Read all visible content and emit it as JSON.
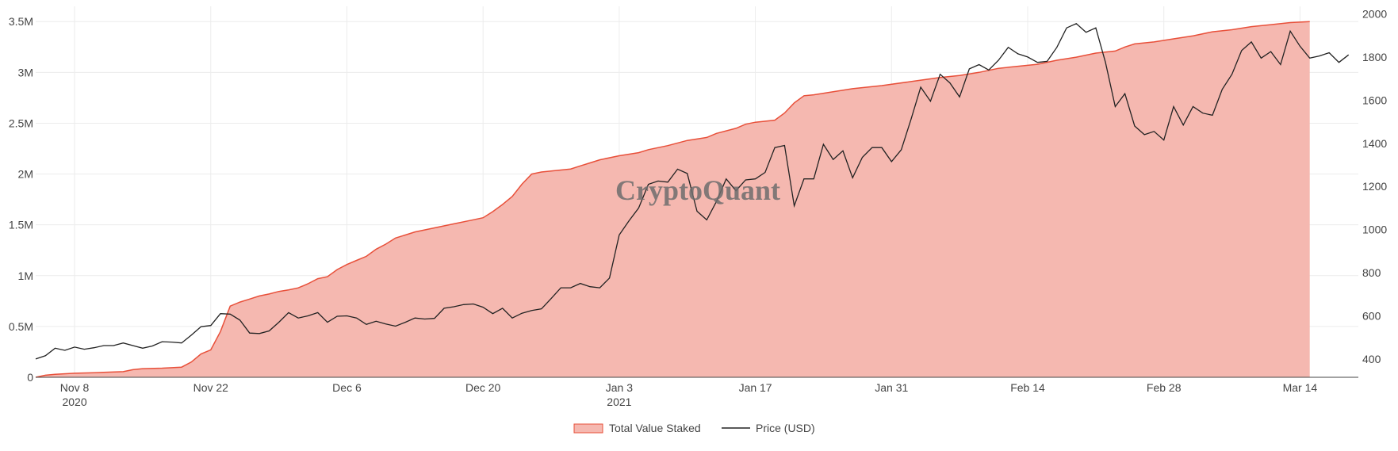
{
  "colors": {
    "area_fill": "#f5b8b0",
    "area_line": "#e8503a",
    "price_line": "#222222",
    "grid": "#ececec",
    "axis_text": "#444444"
  },
  "watermark": "CryptoQuant",
  "legend": {
    "area_label": "Total Value Staked",
    "price_label": "Price (USD)"
  },
  "chart_data": {
    "type": "area",
    "x_ticks": [
      {
        "date": "2020-11-08",
        "label": "Nov 8",
        "sublabel": "2020"
      },
      {
        "date": "2020-11-22",
        "label": "Nov 22",
        "sublabel": ""
      },
      {
        "date": "2020-12-06",
        "label": "Dec 6",
        "sublabel": ""
      },
      {
        "date": "2020-12-20",
        "label": "Dec 20",
        "sublabel": ""
      },
      {
        "date": "2021-01-03",
        "label": "Jan 3",
        "sublabel": "2021"
      },
      {
        "date": "2021-01-17",
        "label": "Jan 17",
        "sublabel": ""
      },
      {
        "date": "2021-01-31",
        "label": "Jan 31",
        "sublabel": ""
      },
      {
        "date": "2021-02-14",
        "label": "Feb 14",
        "sublabel": ""
      },
      {
        "date": "2021-02-28",
        "label": "Feb 28",
        "sublabel": ""
      },
      {
        "date": "2021-03-14",
        "label": "Mar 14",
        "sublabel": ""
      }
    ],
    "x_range": [
      "2020-11-04",
      "2021-03-20"
    ],
    "y_left": {
      "range": [
        0,
        3650000
      ],
      "ticks": [
        {
          "value": 0,
          "label": "0"
        },
        {
          "value": 500000,
          "label": "0.5M"
        },
        {
          "value": 1000000,
          "label": "1M"
        },
        {
          "value": 1500000,
          "label": "1.5M"
        },
        {
          "value": 2000000,
          "label": "2M"
        },
        {
          "value": 2500000,
          "label": "2.5M"
        },
        {
          "value": 3000000,
          "label": "3M"
        },
        {
          "value": 3500000,
          "label": "3.5M"
        }
      ]
    },
    "y_right": {
      "range": [
        315,
        2035
      ],
      "ticks": [
        {
          "value": 400,
          "label": "400"
        },
        {
          "value": 600,
          "label": "600"
        },
        {
          "value": 800,
          "label": "800"
        },
        {
          "value": 1000,
          "label": "1000"
        },
        {
          "value": 1200,
          "label": "1200"
        },
        {
          "value": 1400,
          "label": "1400"
        },
        {
          "value": 1600,
          "label": "1600"
        },
        {
          "value": 1800,
          "label": "1800"
        },
        {
          "value": 2000,
          "label": "2000"
        }
      ]
    },
    "grid": true,
    "legend_position": "bottom-center",
    "series": [
      {
        "name": "Total Value Staked",
        "axis": "left",
        "kind": "area",
        "points": [
          [
            "2020-11-04",
            0
          ],
          [
            "2020-11-05",
            20000
          ],
          [
            "2020-11-06",
            30000
          ],
          [
            "2020-11-08",
            40000
          ],
          [
            "2020-11-10",
            45000
          ],
          [
            "2020-11-13",
            55000
          ],
          [
            "2020-11-14",
            75000
          ],
          [
            "2020-11-15",
            85000
          ],
          [
            "2020-11-17",
            90000
          ],
          [
            "2020-11-19",
            100000
          ],
          [
            "2020-11-20",
            150000
          ],
          [
            "2020-11-21",
            230000
          ],
          [
            "2020-11-22",
            270000
          ],
          [
            "2020-11-23",
            450000
          ],
          [
            "2020-11-24",
            700000
          ],
          [
            "2020-11-25",
            740000
          ],
          [
            "2020-11-26",
            770000
          ],
          [
            "2020-11-27",
            800000
          ],
          [
            "2020-11-28",
            820000
          ],
          [
            "2020-11-29",
            845000
          ],
          [
            "2020-11-30",
            860000
          ],
          [
            "2020-12-01",
            880000
          ],
          [
            "2020-12-02",
            920000
          ],
          [
            "2020-12-03",
            970000
          ],
          [
            "2020-12-04",
            990000
          ],
          [
            "2020-12-05",
            1060000
          ],
          [
            "2020-12-06",
            1110000
          ],
          [
            "2020-12-07",
            1150000
          ],
          [
            "2020-12-08",
            1190000
          ],
          [
            "2020-12-09",
            1260000
          ],
          [
            "2020-12-10",
            1310000
          ],
          [
            "2020-12-11",
            1370000
          ],
          [
            "2020-12-12",
            1400000
          ],
          [
            "2020-12-13",
            1430000
          ],
          [
            "2020-12-15",
            1470000
          ],
          [
            "2020-12-17",
            1510000
          ],
          [
            "2020-12-19",
            1550000
          ],
          [
            "2020-12-20",
            1570000
          ],
          [
            "2020-12-21",
            1630000
          ],
          [
            "2020-12-22",
            1700000
          ],
          [
            "2020-12-23",
            1780000
          ],
          [
            "2020-12-24",
            1900000
          ],
          [
            "2020-12-25",
            2000000
          ],
          [
            "2020-12-26",
            2020000
          ],
          [
            "2020-12-27",
            2030000
          ],
          [
            "2020-12-29",
            2050000
          ],
          [
            "2020-12-30",
            2080000
          ],
          [
            "2020-12-31",
            2110000
          ],
          [
            "2021-01-01",
            2140000
          ],
          [
            "2021-01-03",
            2180000
          ],
          [
            "2021-01-05",
            2210000
          ],
          [
            "2021-01-06",
            2240000
          ],
          [
            "2021-01-08",
            2280000
          ],
          [
            "2021-01-10",
            2330000
          ],
          [
            "2021-01-12",
            2360000
          ],
          [
            "2021-01-13",
            2400000
          ],
          [
            "2021-01-15",
            2450000
          ],
          [
            "2021-01-16",
            2490000
          ],
          [
            "2021-01-17",
            2510000
          ],
          [
            "2021-01-19",
            2530000
          ],
          [
            "2021-01-20",
            2600000
          ],
          [
            "2021-01-21",
            2700000
          ],
          [
            "2021-01-22",
            2770000
          ],
          [
            "2021-01-23",
            2780000
          ],
          [
            "2021-01-25",
            2810000
          ],
          [
            "2021-01-27",
            2840000
          ],
          [
            "2021-01-30",
            2870000
          ],
          [
            "2021-02-02",
            2910000
          ],
          [
            "2021-02-05",
            2950000
          ],
          [
            "2021-02-07",
            2970000
          ],
          [
            "2021-02-09",
            3000000
          ],
          [
            "2021-02-11",
            3040000
          ],
          [
            "2021-02-13",
            3060000
          ],
          [
            "2021-02-15",
            3080000
          ],
          [
            "2021-02-17",
            3120000
          ],
          [
            "2021-02-19",
            3150000
          ],
          [
            "2021-02-21",
            3190000
          ],
          [
            "2021-02-23",
            3210000
          ],
          [
            "2021-02-24",
            3250000
          ],
          [
            "2021-02-25",
            3280000
          ],
          [
            "2021-02-27",
            3300000
          ],
          [
            "2021-03-01",
            3330000
          ],
          [
            "2021-03-03",
            3360000
          ],
          [
            "2021-03-05",
            3400000
          ],
          [
            "2021-03-07",
            3420000
          ],
          [
            "2021-03-09",
            3450000
          ],
          [
            "2021-03-11",
            3470000
          ],
          [
            "2021-03-13",
            3490000
          ],
          [
            "2021-03-15",
            3500000
          ]
        ]
      },
      {
        "name": "Price (USD)",
        "axis": "right",
        "kind": "line",
        "points": [
          [
            "2020-11-04",
            400
          ],
          [
            "2020-11-05",
            415
          ],
          [
            "2020-11-06",
            450
          ],
          [
            "2020-11-07",
            440
          ],
          [
            "2020-11-08",
            455
          ],
          [
            "2020-11-09",
            445
          ],
          [
            "2020-11-10",
            452
          ],
          [
            "2020-11-11",
            462
          ],
          [
            "2020-11-12",
            462
          ],
          [
            "2020-11-13",
            474
          ],
          [
            "2020-11-14",
            462
          ],
          [
            "2020-11-15",
            450
          ],
          [
            "2020-11-16",
            460
          ],
          [
            "2020-11-17",
            480
          ],
          [
            "2020-11-18",
            478
          ],
          [
            "2020-11-19",
            474
          ],
          [
            "2020-11-20",
            510
          ],
          [
            "2020-11-21",
            550
          ],
          [
            "2020-11-22",
            555
          ],
          [
            "2020-11-23",
            610
          ],
          [
            "2020-11-24",
            608
          ],
          [
            "2020-11-25",
            580
          ],
          [
            "2020-11-26",
            520
          ],
          [
            "2020-11-27",
            518
          ],
          [
            "2020-11-28",
            530
          ],
          [
            "2020-11-29",
            570
          ],
          [
            "2020-11-30",
            615
          ],
          [
            "2020-12-01",
            590
          ],
          [
            "2020-12-02",
            600
          ],
          [
            "2020-12-03",
            615
          ],
          [
            "2020-12-04",
            570
          ],
          [
            "2020-12-05",
            598
          ],
          [
            "2020-12-06",
            600
          ],
          [
            "2020-12-07",
            590
          ],
          [
            "2020-12-08",
            560
          ],
          [
            "2020-12-09",
            575
          ],
          [
            "2020-12-10",
            562
          ],
          [
            "2020-12-11",
            552
          ],
          [
            "2020-12-12",
            570
          ],
          [
            "2020-12-13",
            590
          ],
          [
            "2020-12-14",
            585
          ],
          [
            "2020-12-15",
            588
          ],
          [
            "2020-12-16",
            635
          ],
          [
            "2020-12-17",
            642
          ],
          [
            "2020-12-18",
            652
          ],
          [
            "2020-12-19",
            655
          ],
          [
            "2020-12-20",
            640
          ],
          [
            "2020-12-21",
            610
          ],
          [
            "2020-12-22",
            635
          ],
          [
            "2020-12-23",
            590
          ],
          [
            "2020-12-24",
            612
          ],
          [
            "2020-12-25",
            625
          ],
          [
            "2020-12-26",
            632
          ],
          [
            "2020-12-27",
            680
          ],
          [
            "2020-12-28",
            730
          ],
          [
            "2020-12-29",
            730
          ],
          [
            "2020-12-30",
            750
          ],
          [
            "2020-12-31",
            735
          ],
          [
            "2021-01-01",
            730
          ],
          [
            "2021-01-02",
            775
          ],
          [
            "2021-01-03",
            975
          ],
          [
            "2021-01-04",
            1040
          ],
          [
            "2021-01-05",
            1100
          ],
          [
            "2021-01-06",
            1210
          ],
          [
            "2021-01-07",
            1225
          ],
          [
            "2021-01-08",
            1220
          ],
          [
            "2021-01-09",
            1280
          ],
          [
            "2021-01-10",
            1260
          ],
          [
            "2021-01-11",
            1085
          ],
          [
            "2021-01-12",
            1045
          ],
          [
            "2021-01-13",
            1130
          ],
          [
            "2021-01-14",
            1235
          ],
          [
            "2021-01-15",
            1180
          ],
          [
            "2021-01-16",
            1230
          ],
          [
            "2021-01-17",
            1235
          ],
          [
            "2021-01-18",
            1265
          ],
          [
            "2021-01-19",
            1380
          ],
          [
            "2021-01-20",
            1390
          ],
          [
            "2021-01-21",
            1110
          ],
          [
            "2021-01-22",
            1235
          ],
          [
            "2021-01-23",
            1235
          ],
          [
            "2021-01-24",
            1395
          ],
          [
            "2021-01-25",
            1325
          ],
          [
            "2021-01-26",
            1365
          ],
          [
            "2021-01-27",
            1240
          ],
          [
            "2021-01-28",
            1335
          ],
          [
            "2021-01-29",
            1380
          ],
          [
            "2021-01-30",
            1380
          ],
          [
            "2021-01-31",
            1315
          ],
          [
            "2021-02-01",
            1370
          ],
          [
            "2021-02-02",
            1510
          ],
          [
            "2021-02-03",
            1660
          ],
          [
            "2021-02-04",
            1595
          ],
          [
            "2021-02-05",
            1720
          ],
          [
            "2021-02-06",
            1680
          ],
          [
            "2021-02-07",
            1615
          ],
          [
            "2021-02-08",
            1745
          ],
          [
            "2021-02-09",
            1765
          ],
          [
            "2021-02-10",
            1740
          ],
          [
            "2021-02-11",
            1785
          ],
          [
            "2021-02-12",
            1845
          ],
          [
            "2021-02-13",
            1815
          ],
          [
            "2021-02-14",
            1800
          ],
          [
            "2021-02-15",
            1775
          ],
          [
            "2021-02-16",
            1780
          ],
          [
            "2021-02-17",
            1845
          ],
          [
            "2021-02-18",
            1935
          ],
          [
            "2021-02-19",
            1955
          ],
          [
            "2021-02-20",
            1915
          ],
          [
            "2021-02-21",
            1935
          ],
          [
            "2021-02-22",
            1775
          ],
          [
            "2021-02-23",
            1570
          ],
          [
            "2021-02-24",
            1630
          ],
          [
            "2021-02-25",
            1480
          ],
          [
            "2021-02-26",
            1440
          ],
          [
            "2021-02-27",
            1455
          ],
          [
            "2021-02-28",
            1415
          ],
          [
            "2021-03-01",
            1570
          ],
          [
            "2021-03-02",
            1485
          ],
          [
            "2021-03-03",
            1570
          ],
          [
            "2021-03-04",
            1540
          ],
          [
            "2021-03-05",
            1530
          ],
          [
            "2021-03-06",
            1650
          ],
          [
            "2021-03-07",
            1720
          ],
          [
            "2021-03-08",
            1830
          ],
          [
            "2021-03-09",
            1870
          ],
          [
            "2021-03-10",
            1795
          ],
          [
            "2021-03-11",
            1825
          ],
          [
            "2021-03-12",
            1765
          ],
          [
            "2021-03-13",
            1920
          ],
          [
            "2021-03-14",
            1850
          ],
          [
            "2021-03-15",
            1795
          ],
          [
            "2021-03-16",
            1805
          ],
          [
            "2021-03-17",
            1820
          ],
          [
            "2021-03-18",
            1775
          ],
          [
            "2021-03-19",
            1810
          ]
        ]
      }
    ]
  }
}
